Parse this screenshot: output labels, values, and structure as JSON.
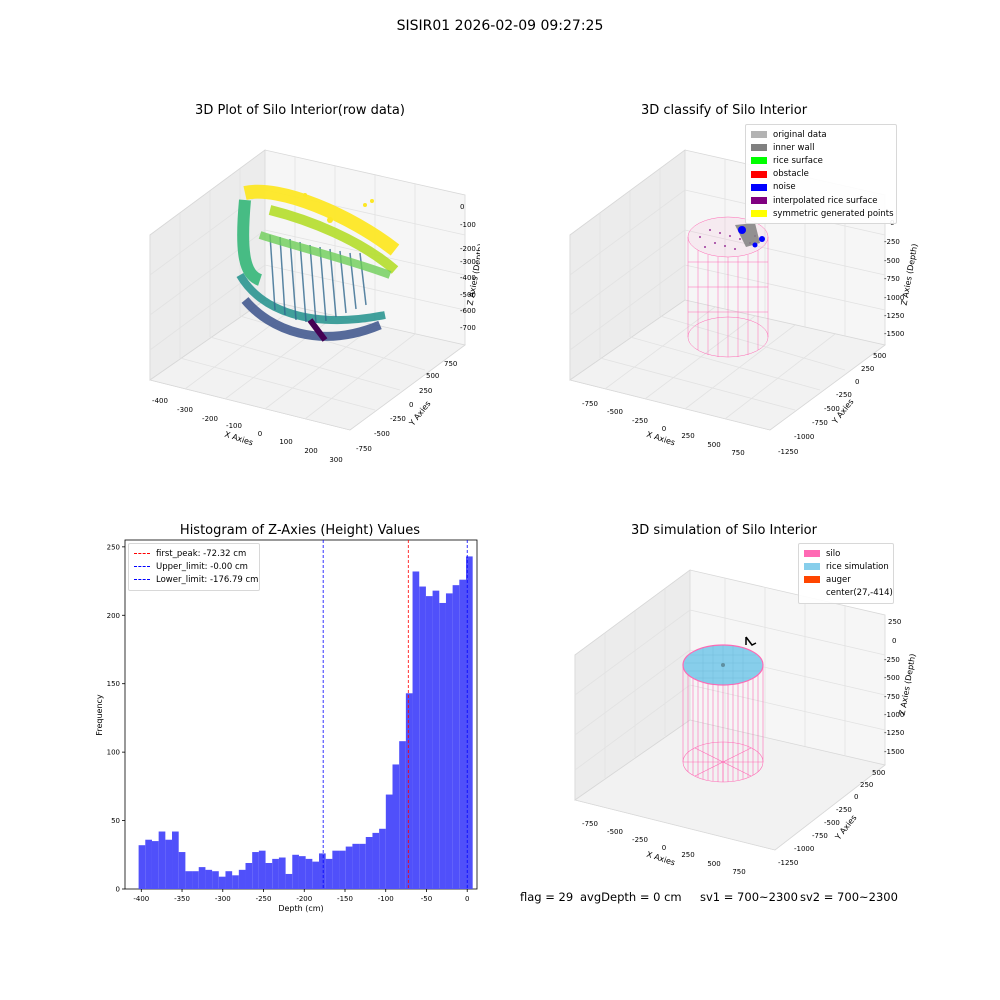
{
  "suptitle": "SISIR01 2026-02-09 09:27:25",
  "status": {
    "flag": "flag = 29",
    "avg_depth": "avgDepth = 0 cm",
    "sv1": "sv1 = 700~2300",
    "sv2": "sv2 = 700~2300"
  },
  "colors": {
    "hist_bar": "#5050fa",
    "peak_line": "#ff0000",
    "limit_line": "#0000ff",
    "silo_pink": "#ff69b4",
    "rice_blue": "#87ceeb",
    "auger": "#ff4500"
  },
  "chart_data": [
    {
      "type": "scatter",
      "subtype": "3d-scatter",
      "title": "3D Plot of Silo Interior(row data)",
      "xlabel": "X Axies",
      "ylabel": "Y Axies",
      "zlabel": "Z Axies (Depth)",
      "x_ticks": [
        "-400",
        "-300",
        "-200",
        "-100",
        "0",
        "100",
        "200",
        "300"
      ],
      "y_ticks": [
        "-750",
        "-500",
        "-250",
        "0",
        "250",
        "500",
        "750"
      ],
      "z_ticks": [
        "0",
        "-100",
        "-200",
        "-300",
        "-400",
        "-500",
        "-600",
        "-700"
      ],
      "colormap": "viridis",
      "description": "point cloud of silo wall scan, colored by depth"
    },
    {
      "type": "scatter",
      "subtype": "3d-scatter",
      "title": "3D classify of Silo Interior",
      "xlabel": "X Axies",
      "ylabel": "Y Axies",
      "zlabel": "Z Axies (Depth)",
      "x_ticks": [
        "-750",
        "-500",
        "-250",
        "0",
        "250",
        "500",
        "750"
      ],
      "y_ticks": [
        "-1250",
        "-1000",
        "-750",
        "-500",
        "-250",
        "0",
        "250",
        "500"
      ],
      "z_ticks": [
        "0",
        "-250",
        "-500",
        "-750",
        "-1000",
        "-1250",
        "-1500"
      ],
      "legend": [
        {
          "label": "original data",
          "color": "#b3b3b3"
        },
        {
          "label": "inner wall",
          "color": "#808080"
        },
        {
          "label": "rice surface",
          "color": "#00ff00"
        },
        {
          "label": "obstacle",
          "color": "#ff0000"
        },
        {
          "label": "noise",
          "color": "#0000ff"
        },
        {
          "label": "interpolated rice surface",
          "color": "#800080"
        },
        {
          "label": "symmetric generated points",
          "color": "#ffff00"
        }
      ]
    },
    {
      "type": "bar",
      "subtype": "histogram",
      "title": "Histogram of Z-Axies (Height) Values",
      "xlabel": "Depth (cm)",
      "ylabel": "Frequency",
      "xlim": [
        -420,
        12
      ],
      "ylim": [
        0,
        255
      ],
      "x_ticks": [
        -400,
        -350,
        -300,
        -250,
        -200,
        -150,
        -100,
        -50,
        0
      ],
      "y_ticks": [
        0,
        50,
        100,
        150,
        200,
        250
      ],
      "bin_start": -403.3,
      "bin_width": 8.2,
      "values": [
        32,
        36,
        35,
        42,
        36,
        42,
        27,
        13,
        13,
        16,
        14,
        13,
        9,
        13,
        10,
        14,
        19,
        27,
        28,
        19,
        22,
        23,
        11,
        25,
        24,
        22,
        20,
        26,
        22,
        28,
        28,
        31,
        33,
        33,
        38,
        41,
        44,
        69,
        91,
        108,
        143,
        232,
        221,
        214,
        218,
        209,
        216,
        222,
        226,
        243
      ],
      "lines": [
        {
          "label": "first_peak: -72.32 cm",
          "x": -72.32,
          "color": "#ff0000"
        },
        {
          "label": "Upper_limit: -0.00 cm",
          "x": 0,
          "color": "#0000ff"
        },
        {
          "label": "Lower_limit: -176.79 cm",
          "x": -176.79,
          "color": "#0000ff"
        }
      ]
    },
    {
      "type": "scatter",
      "subtype": "3d-surface",
      "title": "3D simulation of Silo Interior",
      "xlabel": "X Axies",
      "ylabel": "Y Axies",
      "zlabel": "Z Axies (Depth)",
      "x_ticks": [
        "-750",
        "-500",
        "-250",
        "0",
        "250",
        "500",
        "750"
      ],
      "y_ticks": [
        "-1250",
        "-1000",
        "-750",
        "-500",
        "-250",
        "0",
        "250",
        "500"
      ],
      "z_ticks": [
        "250",
        "0",
        "-250",
        "-500",
        "-750",
        "-1000",
        "-1250",
        "-1500"
      ],
      "legend": [
        {
          "label": "silo",
          "color": "#ff69b4"
        },
        {
          "label": "rice simulation",
          "color": "#87ceeb"
        },
        {
          "label": "auger",
          "color": "#ff4500"
        },
        {
          "label": "center(27,-414)",
          "color": ""
        }
      ]
    }
  ]
}
